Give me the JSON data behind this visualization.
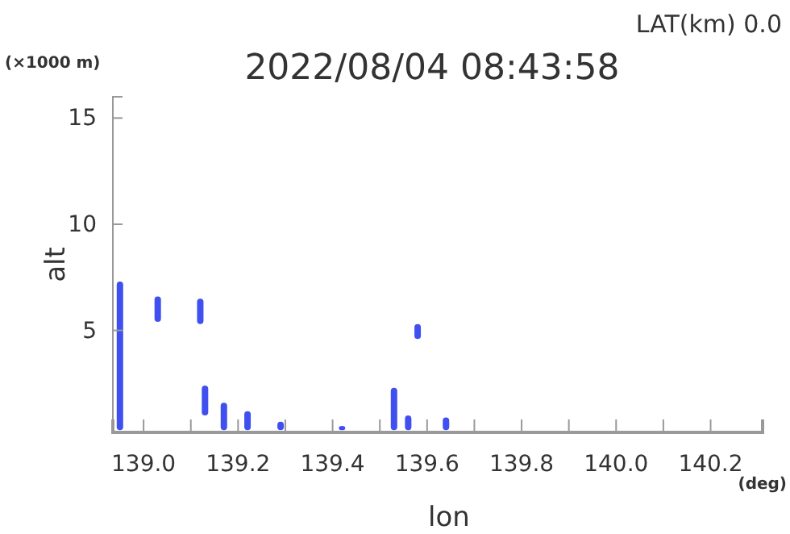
{
  "chart_data": {
    "type": "bar",
    "title": "2022/08/04 08:43:58",
    "subtitle": "LAT(km) 0.0",
    "xlabel": "lon",
    "ylabel": "alt",
    "annotations": [
      "(×1000 m)",
      "(deg)"
    ],
    "x": [
      138.95,
      139.03,
      139.12,
      139.13,
      139.17,
      139.22,
      139.29,
      139.42,
      139.53,
      139.56,
      139.58,
      139.64
    ],
    "base": [
      0.3,
      5.4,
      5.3,
      1.0,
      0.3,
      0.3,
      0.3,
      0.3,
      0.3,
      0.3,
      4.6,
      0.3
    ],
    "values": [
      7.0,
      1.2,
      1.2,
      1.4,
      1.3,
      0.9,
      0.4,
      0.2,
      2.0,
      0.7,
      0.7,
      0.6
    ],
    "color": "#4050f0",
    "xlim": [
      138.935,
      140.31
    ],
    "ylim": [
      0.2,
      16
    ],
    "xticks": [
      {
        "value": 139,
        "label": "139.0"
      },
      {
        "value": 139.1,
        "label": null
      },
      139.2,
      {
        "value": 139.3,
        "label": null
      },
      139.4,
      {
        "value": 139.5,
        "label": null
      },
      139.6,
      {
        "value": 139.7,
        "label": null
      },
      139.8,
      {
        "value": 139.9,
        "label": null
      },
      {
        "value": 140,
        "label": "140.0"
      },
      {
        "value": 140.1,
        "label": null
      },
      140.2
    ],
    "yticks": [
      5,
      10,
      15
    ],
    "grid": false
  }
}
